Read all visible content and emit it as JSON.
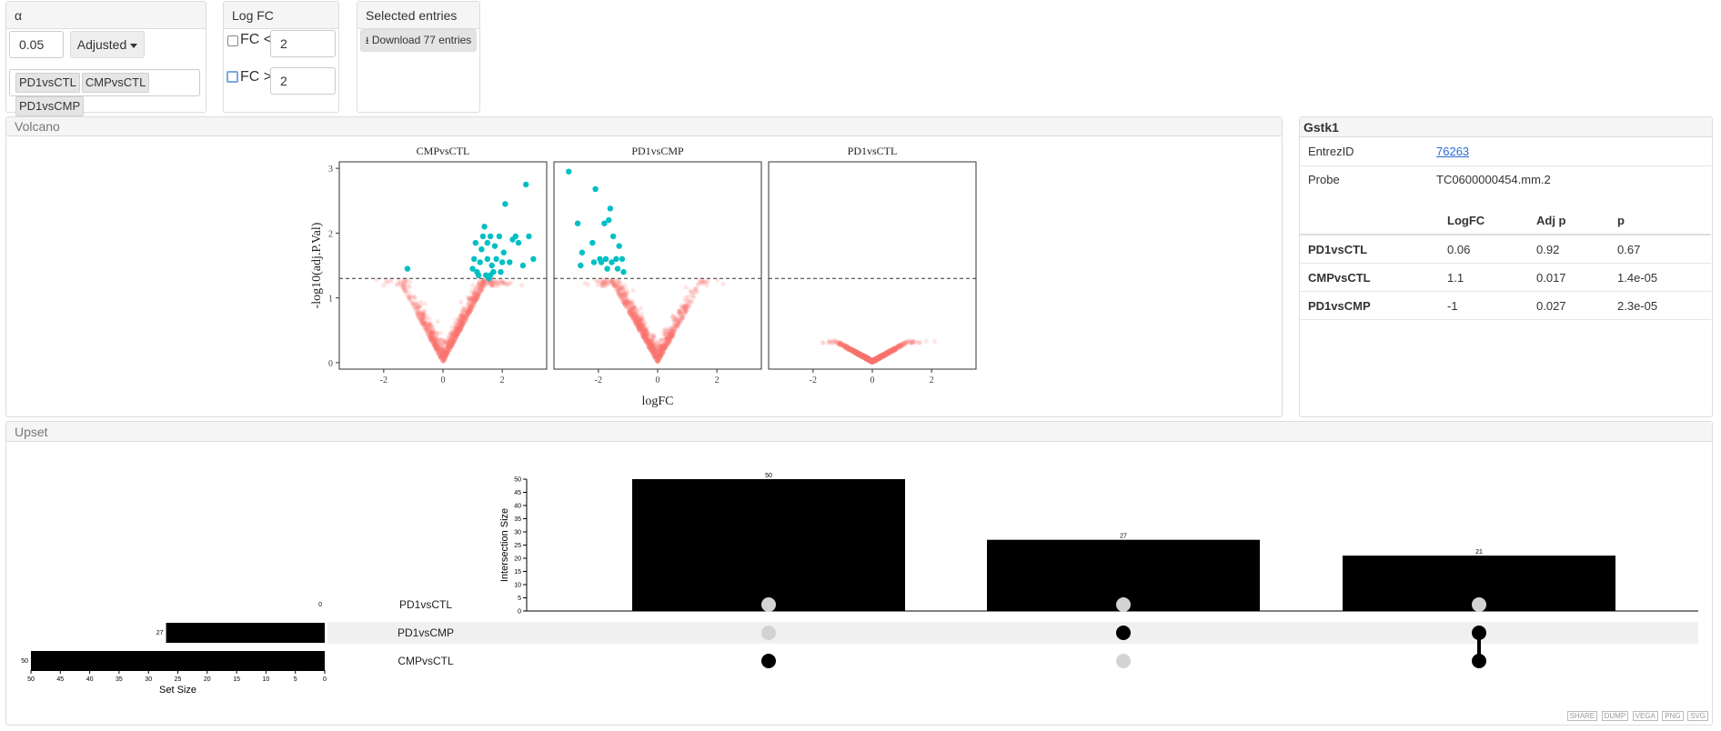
{
  "alpha_panel": {
    "title": "α",
    "alpha_value": "0.05",
    "adjust_label": "Adjusted",
    "contrasts": [
      "PD1vsCTL",
      "CMPvsCTL",
      "PD1vsCMP"
    ]
  },
  "logfc_panel": {
    "title": "Log FC",
    "fc_lt_label": "FC <",
    "fc_lt_value": "2",
    "fc_gt_label": "FC >",
    "fc_gt_value": "2"
  },
  "selected_panel": {
    "title": "Selected entries",
    "download_label": "Download 77 entries"
  },
  "volcano": {
    "title": "Volcano",
    "chart_data": {
      "type": "scatter",
      "facets": [
        "CMPvsCTL",
        "PD1vsCMP",
        "PD1vsCTL"
      ],
      "xlabel": "logFC",
      "ylabel": "-log10(adj.P.Val)",
      "xlim": [
        -3.5,
        3.5
      ],
      "ylim": [
        -0.1,
        3.1
      ],
      "xticks": [
        -2,
        0,
        2
      ],
      "yticks": [
        0,
        1,
        2,
        3
      ],
      "threshold_y": 1.3,
      "colors": {
        "significant": "#00bfc4",
        "not_significant": "#f8766d"
      },
      "significant_points": {
        "CMPvsCTL": [
          [
            -1.2,
            1.45
          ],
          [
            1.0,
            1.45
          ],
          [
            1.05,
            1.6
          ],
          [
            1.1,
            1.85
          ],
          [
            1.2,
            1.35
          ],
          [
            1.25,
            1.55
          ],
          [
            1.3,
            1.75
          ],
          [
            1.35,
            1.95
          ],
          [
            1.4,
            2.1
          ],
          [
            1.45,
            1.35
          ],
          [
            1.5,
            1.6
          ],
          [
            1.5,
            1.85
          ],
          [
            1.55,
            1.3
          ],
          [
            1.6,
            1.95
          ],
          [
            1.65,
            1.5
          ],
          [
            1.7,
            1.4
          ],
          [
            1.75,
            1.8
          ],
          [
            1.8,
            1.6
          ],
          [
            1.9,
            1.95
          ],
          [
            1.95,
            1.4
          ],
          [
            2.05,
            1.7
          ],
          [
            2.1,
            2.45
          ],
          [
            2.25,
            1.55
          ],
          [
            2.35,
            1.9
          ],
          [
            2.45,
            1.95
          ],
          [
            2.55,
            1.85
          ],
          [
            2.7,
            1.5
          ],
          [
            2.8,
            2.75
          ],
          [
            2.9,
            1.95
          ],
          [
            3.05,
            1.6
          ],
          [
            1.15,
            1.4
          ],
          [
            1.6,
            1.35
          ],
          [
            2.0,
            1.55
          ]
        ],
        "PD1vsCMP": [
          [
            -3.0,
            2.95
          ],
          [
            -2.7,
            2.15
          ],
          [
            -2.6,
            1.5
          ],
          [
            -2.55,
            1.7
          ],
          [
            -2.2,
            1.85
          ],
          [
            -2.15,
            1.55
          ],
          [
            -2.1,
            2.68
          ],
          [
            -1.95,
            1.6
          ],
          [
            -1.9,
            1.55
          ],
          [
            -1.8,
            2.15
          ],
          [
            -1.75,
            1.6
          ],
          [
            -1.7,
            1.45
          ],
          [
            -1.65,
            2.2
          ],
          [
            -1.6,
            2.38
          ],
          [
            -1.55,
            1.55
          ],
          [
            -1.5,
            1.95
          ],
          [
            -1.4,
            1.6
          ],
          [
            -1.35,
            1.45
          ],
          [
            -1.3,
            1.8
          ],
          [
            -1.2,
            1.6
          ],
          [
            -1.15,
            1.4
          ]
        ],
        "PD1vsCTL": []
      }
    }
  },
  "gene_panel": {
    "title": "Gstk1",
    "entrez_label": "EntrezID",
    "entrez_value": "76263",
    "probe_label": "Probe",
    "probe_value": "TC0600000454.mm.2",
    "table_headers": [
      "LogFC",
      "Adj p",
      "p"
    ],
    "rows": [
      {
        "name": "PD1vsCTL",
        "logfc": "0.06",
        "adjp": "0.92",
        "p": "0.67"
      },
      {
        "name": "CMPvsCTL",
        "logfc": "1.1",
        "adjp": "0.017",
        "p": "1.4e-05"
      },
      {
        "name": "PD1vsCMP",
        "logfc": "-1",
        "adjp": "0.027",
        "p": "2.3e-05"
      }
    ]
  },
  "upset": {
    "title": "Upset",
    "chart_data": {
      "type": "bar",
      "ylabel": "Intersection Size",
      "ylim": [
        0,
        50
      ],
      "yticks": [
        0,
        5,
        10,
        15,
        20,
        25,
        30,
        35,
        40,
        45,
        50
      ],
      "intersections": [
        {
          "value": 50,
          "sets": [
            "CMPvsCTL"
          ]
        },
        {
          "value": 27,
          "sets": [
            "PD1vsCMP"
          ]
        },
        {
          "value": 21,
          "sets": [
            "PD1vsCMP",
            "CMPvsCTL"
          ]
        }
      ],
      "sets": [
        {
          "name": "PD1vsCTL",
          "size": 0
        },
        {
          "name": "PD1vsCMP",
          "size": 27
        },
        {
          "name": "CMPvsCTL",
          "size": 50
        }
      ],
      "set_size_label": "Set Size",
      "set_size_ticks": [
        50,
        45,
        40,
        35,
        30,
        25,
        20,
        15,
        10,
        5,
        0
      ]
    }
  },
  "toolbar": [
    "SHARE",
    "DUMP",
    "VEGA",
    "PNG",
    "SVG"
  ]
}
